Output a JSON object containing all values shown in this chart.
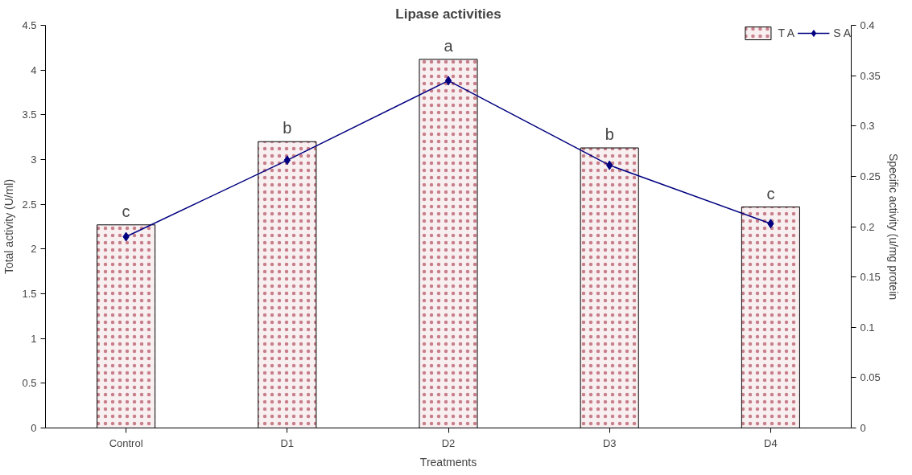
{
  "chart_data": {
    "type": "bar",
    "title": "Lipase activities",
    "xlabel": "Treatments",
    "ylabel": "Total activity (U/ml)",
    "y2label": "Specific activity (u/mg protein",
    "categories": [
      "Control",
      "D1",
      "D2",
      "D3",
      "D4"
    ],
    "series": [
      {
        "name": "T A",
        "type": "bar",
        "color": "#c87f8a",
        "values": [
          2.27,
          3.2,
          4.12,
          3.13,
          2.47
        ]
      },
      {
        "name": "S A",
        "type": "line",
        "axis": "y2",
        "color": "#000080",
        "marker": "diamond",
        "values": [
          0.19,
          0.266,
          0.345,
          0.261,
          0.203
        ]
      }
    ],
    "ylim": [
      0,
      4.5
    ],
    "yticks": [
      0,
      0.5,
      1,
      1.5,
      2,
      2.5,
      3,
      3.5,
      4,
      4.5
    ],
    "y2lim": [
      0,
      0.4
    ],
    "y2ticks": [
      0,
      0.05,
      0.1,
      0.15,
      0.2,
      0.25,
      0.3,
      0.35,
      0.4
    ],
    "annotations": [
      {
        "text": "c",
        "x": "Control",
        "y": 2.27
      },
      {
        "text": "b",
        "x": "D1",
        "y": 3.2
      },
      {
        "text": "a",
        "x": "D2",
        "y": 4.12
      },
      {
        "text": "b",
        "x": "D3",
        "y": 3.13
      },
      {
        "text": "c",
        "x": "D4",
        "y": 2.47
      }
    ],
    "grid": false,
    "legend": "top right"
  }
}
